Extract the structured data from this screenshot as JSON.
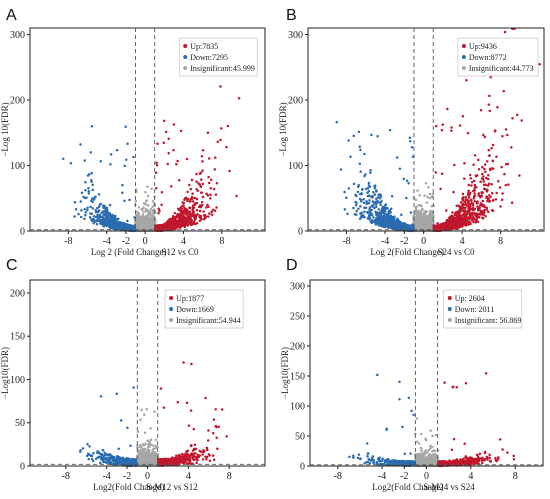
{
  "colors": {
    "up": "#c1172c",
    "down": "#2b6cb0",
    "insignificant": "#a6a6a6"
  },
  "chart_data": [
    {
      "letter": "A",
      "type": "scatter",
      "subtitle": "S12 vs C0",
      "xlabel": "Log 2 (Fold Change)",
      "ylabel": "−Log 10(FDR)",
      "xlim": [
        -12,
        12.5
      ],
      "ylim": [
        0,
        310
      ],
      "x_ticks": [
        -8,
        -4,
        -2,
        0,
        4,
        8
      ],
      "y_ticks": [
        0,
        100,
        200,
        300
      ],
      "vlines": [
        -1,
        1
      ],
      "hline": 2,
      "legend": [
        {
          "label": "Up:7835",
          "key": "up"
        },
        {
          "label": "Down:7295",
          "key": "down"
        },
        {
          "label": "Insignificant:45.999",
          "key": "insignificant"
        }
      ]
    },
    {
      "letter": "B",
      "type": "scatter",
      "subtitle": "S24 vs C0",
      "xlabel": "Log 2(Fold Change)",
      "ylabel": "−Log 10(FDR)",
      "xlim": [
        -12,
        12.5
      ],
      "ylim": [
        0,
        310
      ],
      "x_ticks": [
        -8,
        -4,
        -2,
        0,
        4,
        8
      ],
      "y_ticks": [
        0,
        100,
        200,
        300
      ],
      "vlines": [
        -1,
        1
      ],
      "hline": 2,
      "legend": [
        {
          "label": "Up:9436",
          "key": "up"
        },
        {
          "label": "Down:8772",
          "key": "down"
        },
        {
          "label": "Insignificant:44.773",
          "key": "insignificant"
        }
      ]
    },
    {
      "letter": "C",
      "type": "scatter",
      "subtitle": "S-M12 vs S12",
      "xlabel": "Log2(Fold Change)",
      "ylabel": "−Log10(FDR)",
      "xlim": [
        -11.5,
        11.5
      ],
      "ylim": [
        0,
        215
      ],
      "x_ticks": [
        -8,
        -4,
        -2,
        0,
        4,
        8
      ],
      "y_ticks": [
        0,
        50,
        100,
        150,
        200
      ],
      "vlines": [
        -1,
        1
      ],
      "hline": 2,
      "legend": [
        {
          "label": "Up:1877",
          "key": "up"
        },
        {
          "label": "Down:1669",
          "key": "down"
        },
        {
          "label": "Insignificant:54.944",
          "key": "insignificant"
        }
      ]
    },
    {
      "letter": "D",
      "type": "scatter",
      "subtitle": "S-M24 vs S24",
      "xlabel": "Log2(Fold Change)",
      "ylabel": "−Log10(FDR)",
      "xlim": [
        -10.5,
        10.5
      ],
      "ylim": [
        0,
        310
      ],
      "x_ticks": [
        -8,
        -4,
        -2,
        0,
        4,
        8
      ],
      "y_ticks": [
        0,
        50,
        100,
        150,
        200,
        250,
        300
      ],
      "vlines": [
        -1,
        1
      ],
      "hline": 2,
      "legend": [
        {
          "label": "Up: 2604",
          "key": "up"
        },
        {
          "label": "Down: 2011",
          "key": "down"
        },
        {
          "label": "Insignificant: 56.869",
          "key": "insignificant"
        }
      ]
    }
  ]
}
